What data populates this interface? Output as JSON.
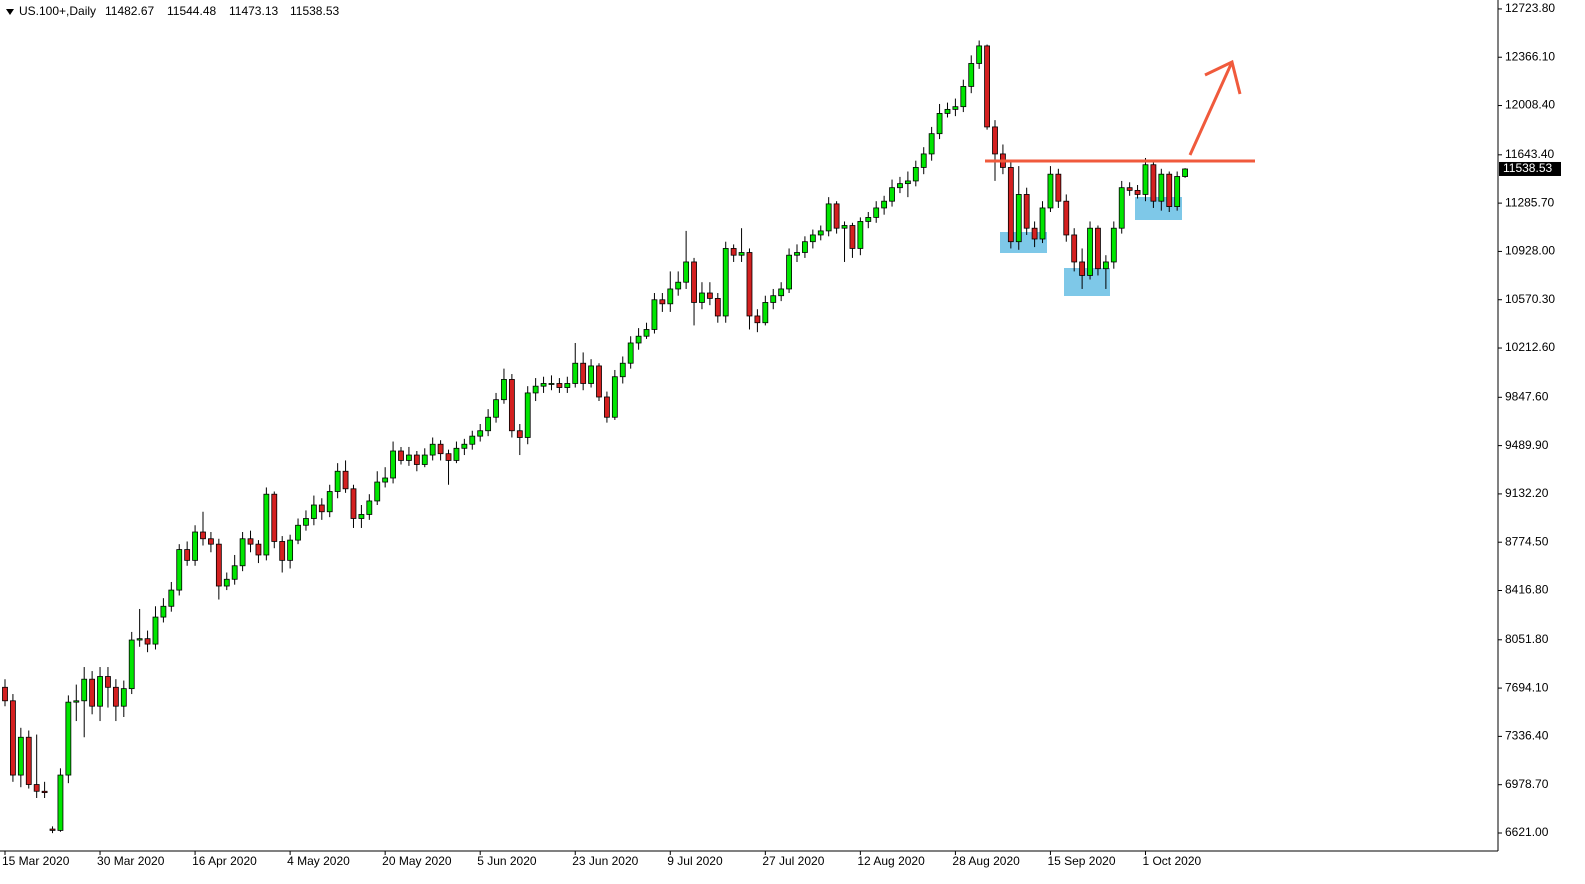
{
  "chart_data": {
    "type": "candlestick",
    "symbol": "US.100+,Daily",
    "up_color": "#00e600",
    "down_color": "#d42020",
    "outline_color": "#000000",
    "ylim": [
      6495,
      12790
    ],
    "yticks": [
      {
        "value": 12723.8,
        "label": "12723.80"
      },
      {
        "value": 12366.1,
        "label": "12366.10"
      },
      {
        "value": 12008.4,
        "label": "12008.40"
      },
      {
        "value": 11643.4,
        "label": "11643.40"
      },
      {
        "value": 11285.7,
        "label": "11285.70"
      },
      {
        "value": 10928,
        "label": "10928.00"
      },
      {
        "value": 10570.3,
        "label": "10570.30"
      },
      {
        "value": 10212.6,
        "label": "10212.60"
      },
      {
        "value": 9847.6,
        "label": "9847.60"
      },
      {
        "value": 9489.9,
        "label": "9489.90"
      },
      {
        "value": 9132.2,
        "label": "9132.20"
      },
      {
        "value": 8774.5,
        "label": "8774.50"
      },
      {
        "value": 8416.8,
        "label": "8416.80"
      },
      {
        "value": 8051.8,
        "label": "8051.80"
      },
      {
        "value": 7694.1,
        "label": "7694.10"
      },
      {
        "value": 7336.4,
        "label": "7336.40"
      },
      {
        "value": 6978.7,
        "label": "6978.70"
      },
      {
        "value": 6621,
        "label": "6621.00"
      }
    ],
    "xticks": [
      {
        "value": 0,
        "label": "15 Mar 2020"
      },
      {
        "value": 12,
        "label": "30 Mar 2020"
      },
      {
        "value": 24,
        "label": "16 Apr 2020"
      },
      {
        "value": 36,
        "label": "4 May 2020"
      },
      {
        "value": 48,
        "label": "20 May 2020"
      },
      {
        "value": 60,
        "label": "5 Jun 2020"
      },
      {
        "value": 72,
        "label": "23 Jun 2020"
      },
      {
        "value": 84,
        "label": "9 Jul 2020"
      },
      {
        "value": 96,
        "label": "27 Jul 2020"
      },
      {
        "value": 108,
        "label": "12 Aug 2020"
      },
      {
        "value": 120,
        "label": "28 Aug 2020"
      },
      {
        "value": 132,
        "label": "15 Sep 2020"
      },
      {
        "value": 144,
        "label": "1 Oct 2020"
      }
    ],
    "open": [
      7700,
      7600,
      7050,
      7330,
      6980,
      6930,
      6650,
      6640,
      7050,
      7590,
      7600,
      7760,
      7560,
      7780,
      7700,
      7560,
      7690,
      8050,
      8060,
      8020,
      8220,
      8300,
      8420,
      8720,
      8640,
      8850,
      8800,
      8760,
      8450,
      8500,
      8600,
      8800,
      8760,
      8680,
      9130,
      8780,
      8640,
      8790,
      8900,
      8950,
      9050,
      9000,
      9150,
      9300,
      9170,
      8950,
      8980,
      9080,
      9220,
      9250,
      9450,
      9380,
      9420,
      9350,
      9420,
      9500,
      9430,
      9380,
      9470,
      9500,
      9560,
      9600,
      9700,
      9830,
      9980,
      9600,
      9550,
      9880,
      9930,
      9950,
      9950,
      9920,
      9950,
      10100,
      9950,
      10080,
      9850,
      9700,
      10000,
      10100,
      10250,
      10300,
      10350,
      10570,
      10540,
      10650,
      10700,
      10850,
      10550,
      10620,
      10580,
      10450,
      10950,
      10900,
      10920,
      10450,
      10400,
      10550,
      10600,
      10650,
      10900,
      10920,
      11000,
      11050,
      11080,
      11280,
      11100,
      11120,
      10950,
      11150,
      11180,
      11250,
      11300,
      11400,
      11430,
      11450,
      11550,
      11650,
      11800,
      11950,
      11980,
      12000,
      12150,
      12320,
      12450,
      11850,
      11650,
      11550,
      11000,
      11350,
      11100,
      11020,
      11250,
      11500,
      11300,
      11050,
      10850,
      10750,
      11100,
      10800,
      10850,
      11100,
      11400,
      11380,
      11350,
      11570,
      11300,
      11500,
      11260,
      11482.67
    ],
    "high": [
      7760,
      7650,
      7400,
      7380,
      7350,
      7000,
      6670,
      7100,
      7640,
      7720,
      7850,
      7820,
      7850,
      7850,
      7760,
      7750,
      8110,
      8280,
      8120,
      8300,
      8360,
      8480,
      8760,
      8780,
      8900,
      9000,
      8850,
      8800,
      8550,
      8680,
      8850,
      8860,
      8790,
      9180,
      9150,
      8820,
      8830,
      8950,
      9010,
      9120,
      9100,
      9200,
      9360,
      9380,
      9200,
      9050,
      9130,
      9300,
      9330,
      9520,
      9480,
      9480,
      9450,
      9470,
      9550,
      9530,
      9460,
      9520,
      9540,
      9600,
      9650,
      9760,
      9880,
      10060,
      10020,
      9650,
      9930,
      9990,
      10000,
      10010,
      9990,
      10000,
      10250,
      10180,
      10130,
      10100,
      9890,
      10050,
      10150,
      10300,
      10360,
      10400,
      10620,
      10620,
      10780,
      10780,
      11080,
      10880,
      10700,
      10700,
      10620,
      11000,
      10980,
      11100,
      10950,
      10500,
      10600,
      10650,
      10700,
      10950,
      10980,
      11040,
      11090,
      11120,
      11330,
      11300,
      11150,
      11140,
      11180,
      11220,
      11300,
      11340,
      11460,
      11480,
      11520,
      11600,
      11700,
      11850,
      12020,
      12030,
      12060,
      12200,
      12380,
      12490,
      12460,
      11900,
      11720,
      11600,
      11560,
      11400,
      11150,
      11300,
      11560,
      11540,
      11350,
      11100,
      10950,
      11150,
      11120,
      10900,
      11150,
      11450,
      11440,
      11420,
      11620,
      11600,
      11540,
      11520,
      11520,
      11544.48
    ],
    "low": [
      7560,
      7000,
      6960,
      6950,
      6880,
      6880,
      6620,
      6630,
      6990,
      7450,
      7330,
      7500,
      7450,
      7550,
      7450,
      7480,
      7650,
      8000,
      7960,
      7980,
      8180,
      8260,
      8380,
      8600,
      8600,
      8750,
      8700,
      8350,
      8420,
      8460,
      8560,
      8700,
      8620,
      8640,
      8730,
      8550,
      8580,
      8760,
      8860,
      8900,
      8940,
      8960,
      9100,
      9140,
      8880,
      8880,
      8940,
      9050,
      9180,
      9210,
      9350,
      9340,
      9300,
      9330,
      9380,
      9380,
      9200,
      9360,
      9420,
      9460,
      9520,
      9560,
      9660,
      9800,
      9550,
      9420,
      9500,
      9820,
      9880,
      9900,
      9880,
      9880,
      9920,
      9900,
      9920,
      9820,
      9660,
      9680,
      9950,
      10060,
      10200,
      10280,
      10320,
      10480,
      10480,
      10600,
      10650,
      10380,
      10500,
      10530,
      10400,
      10400,
      10850,
      10850,
      10350,
      10330,
      10380,
      10500,
      10560,
      10620,
      10850,
      10880,
      10950,
      11010,
      11040,
      11060,
      10850,
      10880,
      10900,
      11100,
      11140,
      11200,
      11260,
      11360,
      11330,
      11410,
      11500,
      11600,
      11760,
      11920,
      11930,
      11960,
      12100,
      12280,
      11830,
      11450,
      11500,
      10950,
      10940,
      11050,
      10960,
      10990,
      11220,
      11250,
      11000,
      10780,
      10650,
      10720,
      10750,
      10650,
      10800,
      11060,
      11340,
      11320,
      11300,
      11250,
      11230,
      11220,
      11230,
      11473.13
    ],
    "close": [
      7600,
      7050,
      7330,
      6980,
      6930,
      6920,
      6640,
      7050,
      7590,
      7600,
      7760,
      7560,
      7780,
      7700,
      7560,
      7690,
      8050,
      8060,
      8020,
      8220,
      8300,
      8420,
      8720,
      8640,
      8850,
      8800,
      8760,
      8450,
      8500,
      8600,
      8800,
      8760,
      8680,
      9130,
      8780,
      8640,
      8790,
      8900,
      8950,
      9050,
      9000,
      9150,
      9300,
      9170,
      8950,
      8980,
      9080,
      9220,
      9250,
      9450,
      9380,
      9420,
      9350,
      9420,
      9500,
      9430,
      9380,
      9470,
      9500,
      9560,
      9600,
      9700,
      9830,
      9980,
      9600,
      9550,
      9880,
      9930,
      9950,
      9950,
      9920,
      9950,
      10100,
      9950,
      10080,
      9850,
      9700,
      10000,
      10100,
      10250,
      10300,
      10350,
      10570,
      10540,
      10650,
      10700,
      10850,
      10550,
      10620,
      10580,
      10450,
      10950,
      10900,
      10920,
      10450,
      10400,
      10550,
      10600,
      10650,
      10900,
      10920,
      11000,
      11050,
      11080,
      11280,
      11100,
      11120,
      10950,
      11150,
      11180,
      11250,
      11300,
      11400,
      11430,
      11450,
      11550,
      11650,
      11800,
      11950,
      11980,
      12000,
      12150,
      12320,
      12450,
      11850,
      11650,
      11550,
      11000,
      11350,
      11100,
      11020,
      11250,
      11500,
      11300,
      11050,
      10850,
      10750,
      11100,
      10800,
      10850,
      11100,
      11400,
      11380,
      11350,
      11570,
      11300,
      11500,
      11260,
      11483,
      11538.53
    ]
  }
}
